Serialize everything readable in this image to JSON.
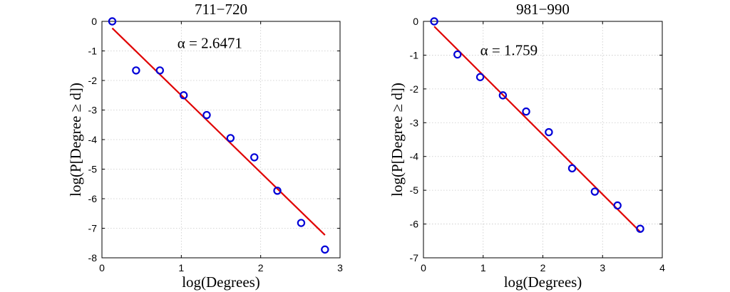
{
  "chart_data": [
    {
      "type": "scatter",
      "title": "711−720",
      "xlabel": "log(Degrees)",
      "ylabel": "log(P[Degree ≥ d])",
      "xlim": [
        0,
        3
      ],
      "ylim": [
        -8,
        0
      ],
      "xticks": [
        0,
        1,
        2,
        3
      ],
      "yticks": [
        0,
        -1,
        -2,
        -3,
        -4,
        -5,
        -6,
        -7,
        -8
      ],
      "grid": true,
      "annotation": {
        "text": "α = 2.6471",
        "x": 0.95,
        "y": -0.9
      },
      "points": {
        "x": [
          0.13,
          0.43,
          0.73,
          1.03,
          1.32,
          1.62,
          1.92,
          2.21,
          2.51,
          2.81
        ],
        "y": [
          0.0,
          -1.66,
          -1.66,
          -2.5,
          -3.17,
          -3.95,
          -4.6,
          -5.73,
          -6.82,
          -7.72
        ]
      },
      "fit_line": {
        "x": [
          0.13,
          2.81
        ],
        "y": [
          -0.23,
          -7.23
        ]
      }
    },
    {
      "type": "scatter",
      "title": "981−990",
      "xlabel": "log(Degrees)",
      "ylabel": "log(P[Degree ≥ d])",
      "xlim": [
        0,
        4
      ],
      "ylim": [
        -7,
        0
      ],
      "xticks": [
        0,
        1,
        2,
        3,
        4
      ],
      "yticks": [
        0,
        -1,
        -2,
        -3,
        -4,
        -5,
        -6,
        -7
      ],
      "grid": true,
      "annotation": {
        "text": "α = 1.759",
        "x": 0.95,
        "y": -1.0
      },
      "points": {
        "x": [
          0.18,
          0.57,
          0.95,
          1.33,
          1.72,
          2.1,
          2.49,
          2.87,
          3.25,
          3.63
        ],
        "y": [
          0.0,
          -0.98,
          -1.65,
          -2.19,
          -2.67,
          -3.28,
          -4.35,
          -5.04,
          -5.45,
          -6.14
        ]
      },
      "fit_line": {
        "x": [
          0.18,
          3.63
        ],
        "y": [
          -0.15,
          -6.23
        ]
      }
    }
  ]
}
